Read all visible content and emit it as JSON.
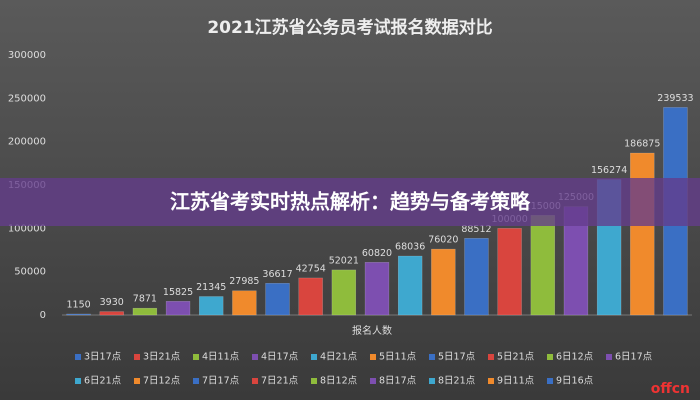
{
  "chart_data": {
    "type": "bar",
    "title": "2021江苏省公务员考试报名数据对比",
    "x_label": "报名人数",
    "categories": [
      "3日17点",
      "3日21点",
      "4日11点",
      "4日17点",
      "4日21点",
      "5日11点",
      "5日17点",
      "5日21点",
      "6日12点",
      "6日17点",
      "6日21点",
      "7日12点",
      "7日17点",
      "7日21点",
      "8日12点",
      "8日17点",
      "8日21点",
      "9日11点",
      "9日16点"
    ],
    "values": [
      1150,
      3930,
      7871,
      15825,
      21345,
      27985,
      36617,
      42754,
      52021,
      60820,
      68036,
      76020,
      88512,
      100000,
      115000,
      125000,
      156274,
      186875,
      239533
    ],
    "colors": [
      "#3a6fc4",
      "#d9453e",
      "#8fbc3c",
      "#7d4fb0",
      "#3ea8cf",
      "#f08a2c",
      "#3a6fc4",
      "#d9453e",
      "#8fbc3c",
      "#7d4fb0",
      "#3ea8cf",
      "#f08a2c",
      "#3a6fc4",
      "#d9453e",
      "#8fbc3c",
      "#7d4fb0",
      "#3ea8cf",
      "#f08a2c",
      "#3a6fc4"
    ],
    "ylim": [
      0,
      300000
    ],
    "yticks": [
      0,
      50000,
      100000,
      150000,
      200000,
      250000,
      300000
    ],
    "grid": false
  },
  "banner": "江苏省考实时热点解析：趋势与备考策略",
  "watermark": "offcn"
}
